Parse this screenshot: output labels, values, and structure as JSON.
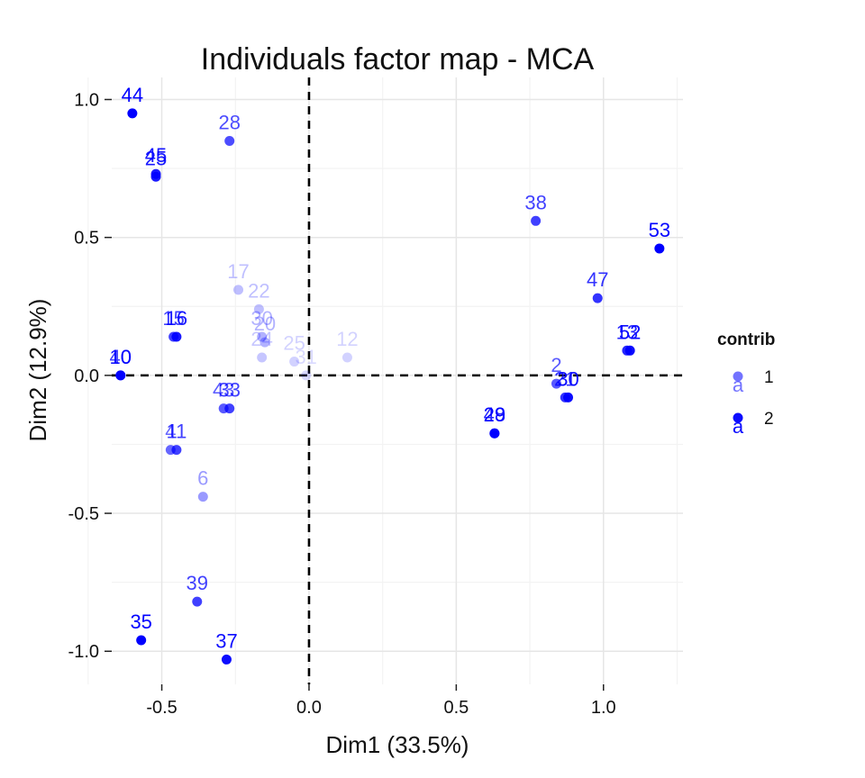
{
  "chart_data": {
    "type": "scatter",
    "title": "Individuals factor map - MCA",
    "xlabel": "Dim1 (33.5%)",
    "ylabel": "Dim2 (12.9%)",
    "xlim": [
      -0.67,
      1.27
    ],
    "ylim": [
      -1.12,
      1.08
    ],
    "x_ticks": [
      {
        "value": -0.5,
        "label": "-0.5"
      },
      {
        "value": 0.0,
        "label": "0.0"
      },
      {
        "value": 0.5,
        "label": "0.5"
      },
      {
        "value": 1.0,
        "label": "1.0"
      }
    ],
    "y_ticks": [
      {
        "value": 1.0,
        "label": "1.0"
      },
      {
        "value": 0.5,
        "label": "0.5"
      },
      {
        "value": 0.0,
        "label": "0.0"
      },
      {
        "value": -0.5,
        "label": "-0.5"
      },
      {
        "value": -1.0,
        "label": "-1.0"
      }
    ],
    "grid": true,
    "reference_lines": {
      "x": 0,
      "y": 0,
      "style": "dashed"
    },
    "legend": {
      "title": "contrib",
      "position": "right",
      "entries": [
        {
          "label": "1",
          "opacity": 0.55
        },
        {
          "label": "2",
          "opacity": 0.95
        }
      ],
      "key_letter": "a"
    },
    "point_color": "#0000ff",
    "points": [
      {
        "label": "44",
        "x": -0.6,
        "y": 0.95,
        "contrib": 2.0
      },
      {
        "label": "28",
        "x": -0.27,
        "y": 0.85,
        "contrib": 1.4
      },
      {
        "label": "45",
        "x": -0.52,
        "y": 0.73,
        "contrib": 1.8
      },
      {
        "label": "25",
        "x": -0.52,
        "y": 0.72,
        "contrib": 1.8
      },
      {
        "label": "17",
        "x": -0.24,
        "y": 0.31,
        "contrib": 0.5
      },
      {
        "label": "22",
        "x": -0.17,
        "y": 0.24,
        "contrib": 0.5
      },
      {
        "label": "30",
        "x": -0.16,
        "y": 0.14,
        "contrib": 0.6
      },
      {
        "label": "20",
        "x": -0.15,
        "y": 0.12,
        "contrib": 0.6
      },
      {
        "label": "24",
        "x": -0.16,
        "y": 0.065,
        "contrib": 0.45
      },
      {
        "label": "25",
        "x": -0.05,
        "y": 0.05,
        "contrib": 0.35
      },
      {
        "label": "31",
        "x": -0.01,
        "y": 0.0,
        "contrib": 0.25
      },
      {
        "label": "12",
        "x": 0.13,
        "y": 0.065,
        "contrib": 0.35
      },
      {
        "label": "15",
        "x": -0.46,
        "y": 0.14,
        "contrib": 1.5
      },
      {
        "label": "16",
        "x": -0.45,
        "y": 0.14,
        "contrib": 1.8
      },
      {
        "label": "40",
        "x": -0.64,
        "y": 0.0,
        "contrib": 1.5
      },
      {
        "label": "10",
        "x": -0.64,
        "y": 0.0,
        "contrib": 1.9
      },
      {
        "label": "43",
        "x": -0.29,
        "y": -0.12,
        "contrib": 1.3
      },
      {
        "label": "33",
        "x": -0.27,
        "y": -0.12,
        "contrib": 1.5
      },
      {
        "label": "4",
        "x": -0.47,
        "y": -0.27,
        "contrib": 1.2
      },
      {
        "label": "11",
        "x": -0.45,
        "y": -0.27,
        "contrib": 1.5
      },
      {
        "label": "6",
        "x": -0.36,
        "y": -0.44,
        "contrib": 0.8
      },
      {
        "label": "39",
        "x": -0.38,
        "y": -0.82,
        "contrib": 1.5
      },
      {
        "label": "35",
        "x": -0.57,
        "y": -0.96,
        "contrib": 2.0
      },
      {
        "label": "37",
        "x": -0.28,
        "y": -1.03,
        "contrib": 1.9
      },
      {
        "label": "38",
        "x": 0.77,
        "y": 0.56,
        "contrib": 1.5
      },
      {
        "label": "53",
        "x": 1.19,
        "y": 0.46,
        "contrib": 2.0
      },
      {
        "label": "47",
        "x": 0.98,
        "y": 0.28,
        "contrib": 1.6
      },
      {
        "label": "13",
        "x": 1.08,
        "y": 0.09,
        "contrib": 1.7
      },
      {
        "label": "52",
        "x": 1.09,
        "y": 0.09,
        "contrib": 1.9
      },
      {
        "label": "2",
        "x": 0.84,
        "y": -0.03,
        "contrib": 1.3
      },
      {
        "label": "21",
        "x": 0.87,
        "y": -0.08,
        "contrib": 1.6
      },
      {
        "label": "30",
        "x": 0.88,
        "y": -0.08,
        "contrib": 1.9
      },
      {
        "label": "48",
        "x": 0.63,
        "y": -0.21,
        "contrib": 1.7
      },
      {
        "label": "29",
        "x": 0.63,
        "y": -0.21,
        "contrib": 2.0
      }
    ]
  }
}
